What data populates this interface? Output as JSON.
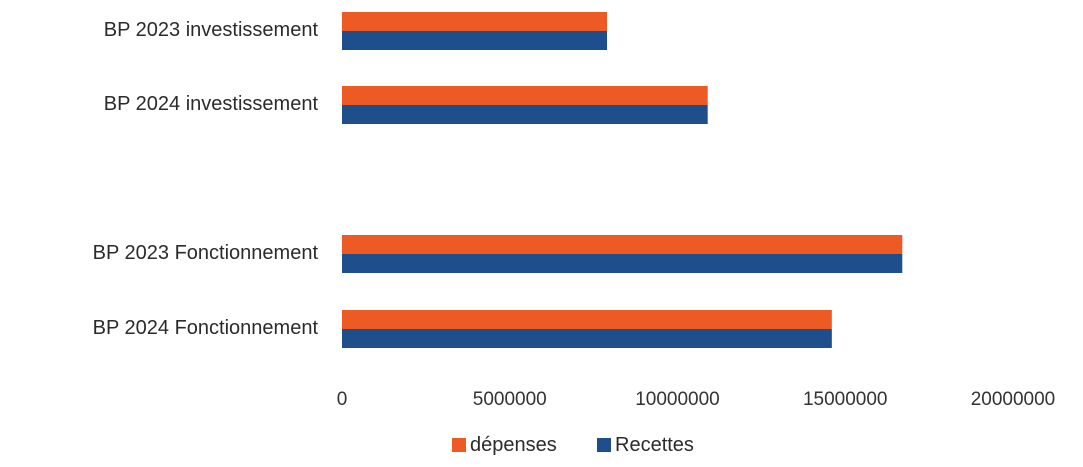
{
  "chart_data": {
    "type": "bar",
    "orientation": "horizontal",
    "categories": [
      "BP 2023 investissement",
      "BP 2024 investissement",
      "",
      "BP 2023 Fonctionnement",
      "BP 2024 Fonctionnement"
    ],
    "series": [
      {
        "name": "dépenses",
        "color": "#ee5a24",
        "values": [
          7900000,
          10900000,
          null,
          16700000,
          14600000
        ]
      },
      {
        "name": "Recettes",
        "color": "#1f4e8c",
        "values": [
          7900000,
          10900000,
          null,
          16700000,
          14600000
        ]
      }
    ],
    "xlim": [
      0,
      20000000
    ],
    "xticks": [
      "0",
      "5000000",
      "10000000",
      "15000000",
      "20000000"
    ],
    "xtick_values": [
      0,
      5000000,
      10000000,
      15000000,
      20000000
    ],
    "grid": false,
    "legend_position": "bottom",
    "title": "",
    "xlabel": "",
    "ylabel": ""
  }
}
